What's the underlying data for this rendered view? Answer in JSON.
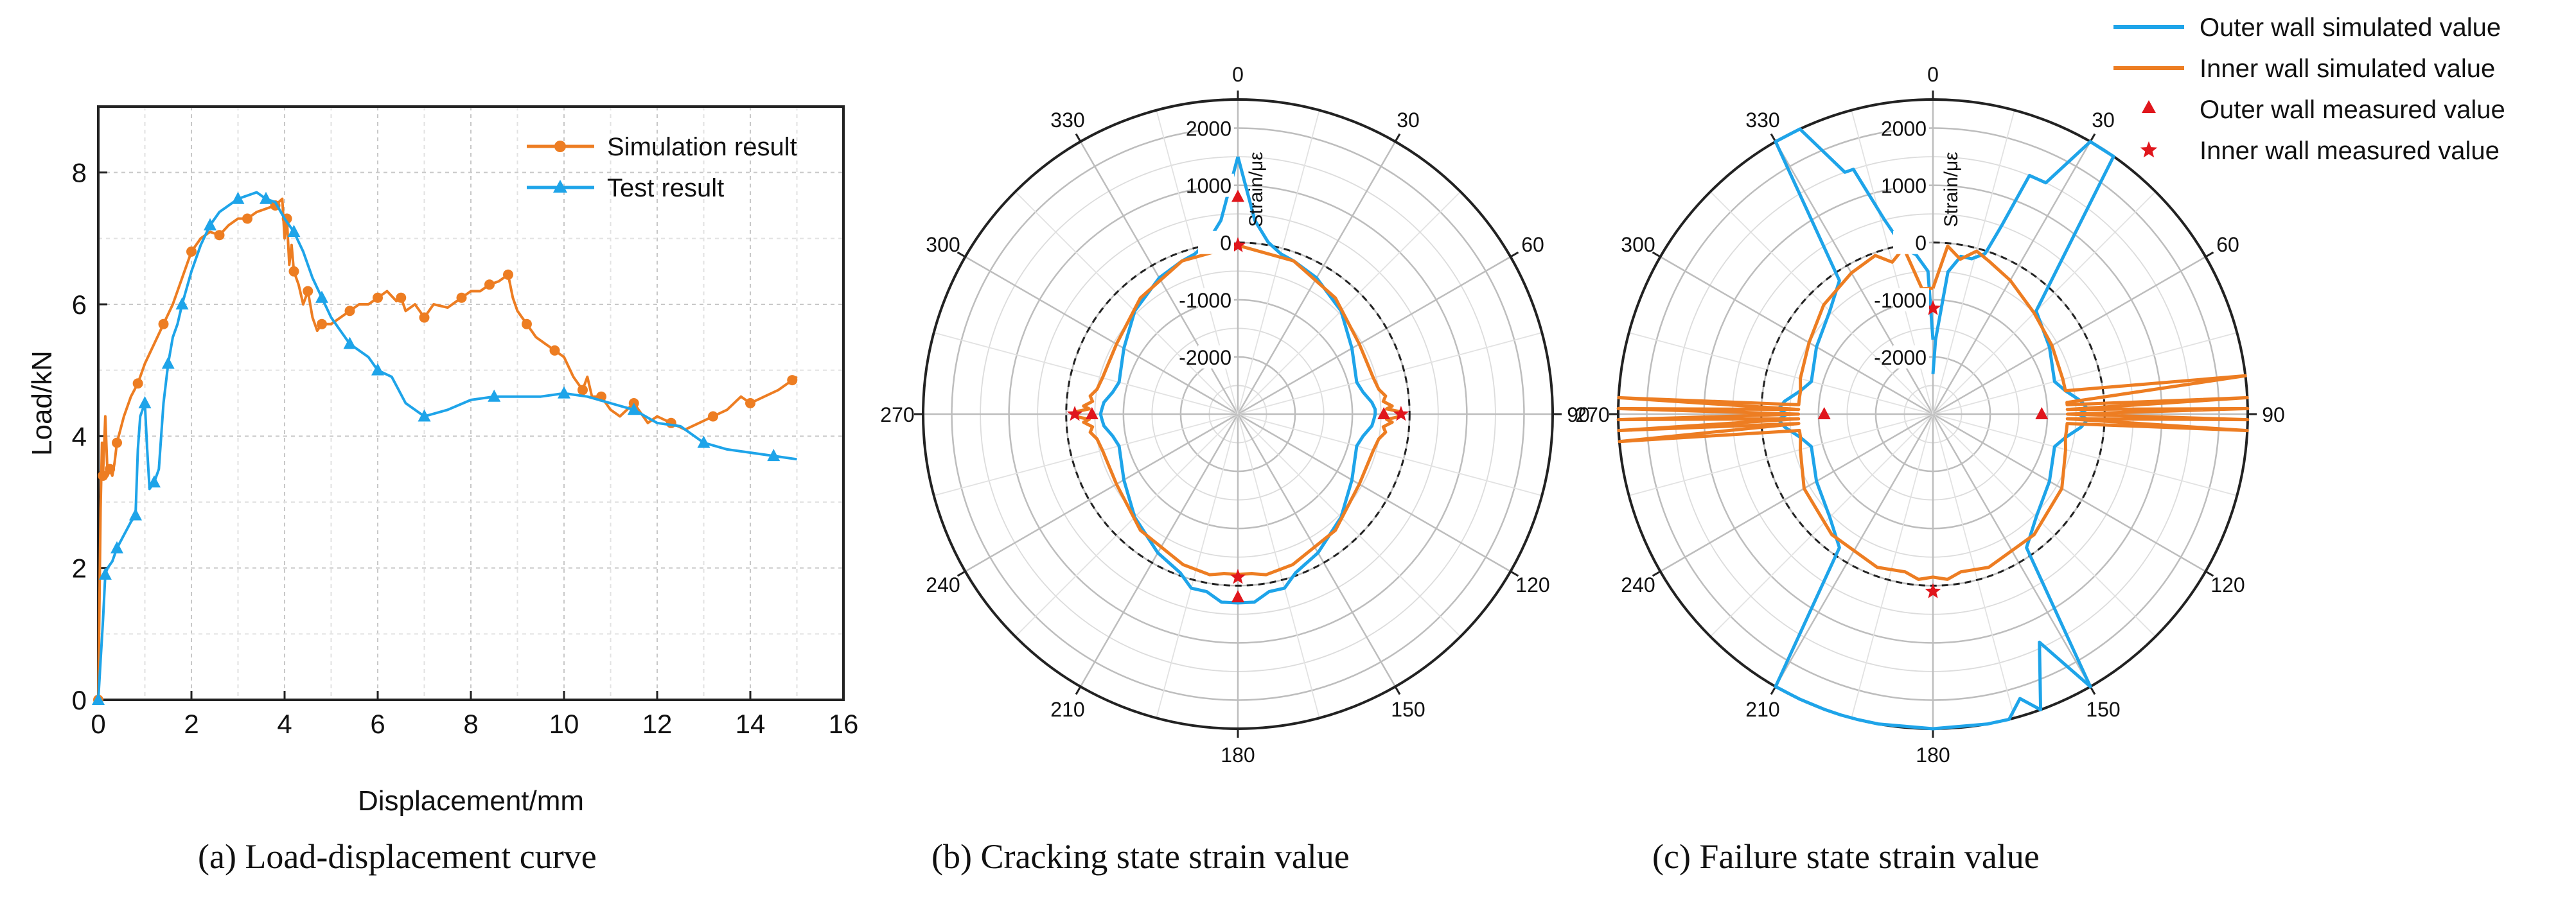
{
  "colors": {
    "outer": "#1EA4E9",
    "inner": "#ED7D22",
    "marker": "#E0161C",
    "grid": "#BDBDBD",
    "axis": "#222222"
  },
  "chart_data": [
    {
      "type": "line",
      "caption": "(a)  Load-displacement curve",
      "xlabel": "Displacement/mm",
      "ylabel": "Load/kN",
      "xlim": [
        0,
        16
      ],
      "ylim": [
        0,
        9
      ],
      "xticks": [
        0,
        2,
        4,
        6,
        8,
        10,
        12,
        14,
        16
      ],
      "yticks": [
        0,
        2,
        4,
        6,
        8
      ],
      "grid": true,
      "legend_position": "top-right",
      "series": [
        {
          "name": "Simulation result",
          "marker": "circle",
          "color": "#ED7D22",
          "x": [
            0,
            0.05,
            0.08,
            0.1,
            0.15,
            0.2,
            0.25,
            0.3,
            0.35,
            0.4,
            0.55,
            0.7,
            0.85,
            1.0,
            1.2,
            1.4,
            1.6,
            1.8,
            2.0,
            2.2,
            2.4,
            2.6,
            2.8,
            3.0,
            3.2,
            3.4,
            3.6,
            3.8,
            3.95,
            4.0,
            4.05,
            4.1,
            4.15,
            4.2,
            4.3,
            4.4,
            4.5,
            4.6,
            4.7,
            4.8,
            5.0,
            5.2,
            5.4,
            5.6,
            5.8,
            6.0,
            6.2,
            6.4,
            6.5,
            6.6,
            6.8,
            7.0,
            7.2,
            7.5,
            7.8,
            8.0,
            8.2,
            8.4,
            8.6,
            8.7,
            8.8,
            8.9,
            9.0,
            9.2,
            9.4,
            9.6,
            9.8,
            10.0,
            10.2,
            10.4,
            10.5,
            10.6,
            10.8,
            11.0,
            11.2,
            11.5,
            11.8,
            12.0,
            12.3,
            12.6,
            12.9,
            13.2,
            13.5,
            13.8,
            14.0,
            14.3,
            14.6,
            14.9,
            15.0
          ],
          "y": [
            0,
            2.9,
            3.9,
            3.4,
            4.3,
            3.4,
            3.5,
            3.4,
            3.6,
            3.9,
            4.3,
            4.6,
            4.8,
            5.1,
            5.4,
            5.7,
            6.0,
            6.4,
            6.8,
            7.0,
            7.1,
            7.05,
            7.2,
            7.3,
            7.3,
            7.4,
            7.45,
            7.5,
            7.6,
            7.0,
            7.3,
            6.6,
            6.9,
            6.5,
            6.3,
            6.0,
            6.2,
            5.8,
            5.6,
            5.7,
            5.7,
            5.8,
            5.9,
            6.0,
            6.0,
            6.1,
            6.2,
            6.05,
            6.1,
            5.9,
            6.0,
            5.8,
            6.0,
            5.95,
            6.1,
            6.2,
            6.2,
            6.3,
            6.35,
            6.4,
            6.45,
            6.1,
            5.9,
            5.7,
            5.5,
            5.4,
            5.3,
            5.2,
            4.9,
            4.7,
            4.9,
            4.6,
            4.6,
            4.4,
            4.3,
            4.5,
            4.2,
            4.3,
            4.2,
            4.1,
            4.2,
            4.3,
            4.4,
            4.6,
            4.5,
            4.6,
            4.7,
            4.85,
            4.9
          ]
        },
        {
          "name": "Test result",
          "marker": "triangle",
          "color": "#1EA4E9",
          "x": [
            0,
            0.05,
            0.1,
            0.15,
            0.2,
            0.3,
            0.4,
            0.55,
            0.7,
            0.8,
            0.85,
            0.9,
            1.0,
            1.05,
            1.1,
            1.2,
            1.3,
            1.4,
            1.5,
            1.6,
            1.7,
            1.8,
            2.0,
            2.2,
            2.4,
            2.6,
            2.8,
            3.0,
            3.2,
            3.4,
            3.6,
            3.8,
            4.0,
            4.2,
            4.4,
            4.6,
            4.8,
            5.0,
            5.2,
            5.4,
            5.6,
            5.8,
            6.0,
            6.3,
            6.6,
            7.0,
            7.5,
            8.0,
            8.5,
            9.0,
            9.5,
            10.0,
            10.5,
            11.0,
            11.5,
            12.0,
            12.5,
            13.0,
            13.5,
            14.0,
            14.5,
            15.0
          ],
          "y": [
            0,
            0.6,
            1.2,
            1.9,
            2.0,
            2.1,
            2.3,
            2.5,
            2.7,
            2.8,
            3.8,
            4.3,
            4.5,
            3.8,
            3.2,
            3.3,
            3.5,
            4.5,
            5.1,
            5.5,
            5.7,
            6.0,
            6.5,
            6.9,
            7.2,
            7.4,
            7.5,
            7.6,
            7.65,
            7.7,
            7.6,
            7.55,
            7.3,
            7.1,
            6.8,
            6.4,
            6.1,
            5.8,
            5.6,
            5.4,
            5.3,
            5.2,
            5.0,
            4.9,
            4.5,
            4.3,
            4.4,
            4.55,
            4.6,
            4.6,
            4.6,
            4.65,
            4.6,
            4.5,
            4.4,
            4.2,
            4.15,
            3.9,
            3.8,
            3.75,
            3.7,
            3.65
          ]
        }
      ]
    },
    {
      "type": "polar",
      "caption": "(b)   Cracking state strain value",
      "radial_label": "Strain/με",
      "rlim": [
        -3000,
        2500
      ],
      "angle_ticks": [
        "0",
        "30",
        "60",
        "90",
        "120",
        "150",
        "180",
        "210",
        "240",
        "270",
        "300",
        "330"
      ],
      "radial_ticks": [
        "2000",
        "1000",
        "0",
        "-1000",
        "-2000"
      ],
      "reference_circle": 0,
      "series": [
        {
          "name": "Outer wall simulated value",
          "color": "#1EA4E9",
          "angles": [
            0,
            5,
            10,
            15,
            20,
            30,
            45,
            60,
            75,
            80,
            85,
            88,
            90,
            92,
            95,
            100,
            105,
            120,
            135,
            150,
            160,
            165,
            170,
            175,
            180,
            185,
            190,
            195,
            200,
            210,
            225,
            240,
            255,
            260,
            265,
            268,
            270,
            272,
            275,
            280,
            285,
            300,
            315,
            330,
            340,
            345,
            350,
            355,
            360
          ],
          "values": [
            1500,
            400,
            50,
            -100,
            -150,
            -250,
            -450,
            -700,
            -850,
            -780,
            -650,
            -600,
            -600,
            -620,
            -650,
            -780,
            -850,
            -700,
            -450,
            -200,
            -50,
            150,
            150,
            300,
            300,
            300,
            150,
            150,
            -50,
            -200,
            -450,
            -700,
            -850,
            -780,
            -650,
            -620,
            -600,
            -620,
            -650,
            -780,
            -850,
            -700,
            -450,
            -250,
            -150,
            -100,
            50,
            400,
            1500
          ]
        },
        {
          "name": "Inner wall simulated value",
          "color": "#ED7D22",
          "angles": [
            0,
            20,
            40,
            60,
            75,
            80,
            83,
            85,
            87,
            88,
            89,
            90,
            91,
            92,
            93,
            95,
            97,
            100,
            105,
            120,
            140,
            160,
            170,
            175,
            180,
            185,
            190,
            200,
            220,
            240,
            255,
            260,
            263,
            265,
            267,
            268,
            269,
            270,
            271,
            272,
            273,
            275,
            277,
            280,
            285,
            300,
            320,
            340,
            360
          ],
          "values": [
            -50,
            -150,
            -350,
            -550,
            -550,
            -500,
            -400,
            -450,
            -300,
            -400,
            -200,
            -200,
            -200,
            -400,
            -300,
            -450,
            -400,
            -500,
            -550,
            -550,
            -350,
            -200,
            -150,
            -200,
            -200,
            -200,
            -150,
            -200,
            -350,
            -550,
            -550,
            -500,
            -400,
            -450,
            -300,
            -400,
            -200,
            -200,
            -200,
            -400,
            -300,
            -450,
            -400,
            -500,
            -550,
            -550,
            -350,
            -150,
            -50
          ]
        }
      ],
      "measured": [
        {
          "name": "Outer wall measured value",
          "marker": "triangle",
          "angles": [
            0,
            90,
            180,
            270
          ],
          "values": [
            800,
            -450,
            200,
            -450
          ]
        },
        {
          "name": "Inner wall measured value",
          "marker": "star",
          "angles": [
            0,
            90,
            180,
            270
          ],
          "values": [
            -50,
            -150,
            -150,
            -150
          ]
        }
      ]
    },
    {
      "type": "polar",
      "caption": "(c)   Failure state strain value",
      "radial_label": "Strain/με",
      "rlim": [
        -3000,
        2500
      ],
      "angle_ticks": [
        "0",
        "30",
        "60",
        "90",
        "120",
        "150",
        "180",
        "210",
        "240",
        "270",
        "300",
        "330"
      ],
      "radial_ticks": [
        "2000",
        "1000",
        "0",
        "-1000",
        "-2000"
      ],
      "reference_circle": 0,
      "series": [
        {
          "name": "Outer wall simulated value",
          "color": "#1EA4E9",
          "angles": [
            0,
            2,
            6,
            10,
            14,
            18,
            20,
            22,
            26,
            30,
            35,
            45,
            60,
            75,
            80,
            85,
            88,
            90,
            92,
            95,
            100,
            105,
            120,
            135,
            145,
            150,
            155,
            160,
            163,
            166,
            170,
            180,
            190,
            194,
            197,
            200,
            205,
            210,
            215,
            225,
            240,
            255,
            260,
            265,
            268,
            270,
            272,
            275,
            280,
            285,
            300,
            315,
            325,
            330,
            335,
            340,
            342,
            346,
            350,
            354,
            358,
            360
          ],
          "values": [
            -2300,
            -1700,
            -500,
            -200,
            -200,
            -50,
            500,
            1500,
            1500,
            2600,
            2600,
            -450,
            -650,
            -800,
            -650,
            -400,
            -300,
            -450,
            -300,
            -400,
            -650,
            -800,
            -650,
            -450,
            -150,
            2600,
            1400,
            2600,
            2200,
            2600,
            2600,
            2600,
            2600,
            2600,
            2600,
            2600,
            2600,
            2600,
            -150,
            -450,
            -650,
            -800,
            -650,
            -400,
            -300,
            -450,
            -300,
            -400,
            -650,
            -800,
            -650,
            -450,
            -150,
            2600,
            2600,
            1500,
            1500,
            500,
            -50,
            -200,
            -500,
            -1700
          ]
        },
        {
          "name": "Inner wall simulated value",
          "color": "#ED7D22",
          "angles": [
            0,
            5,
            10,
            15,
            20,
            30,
            45,
            60,
            75,
            80,
            83,
            85,
            86,
            87,
            88,
            89,
            90,
            91,
            92,
            93,
            94,
            95,
            97,
            100,
            105,
            120,
            140,
            160,
            170,
            175,
            180,
            185,
            190,
            200,
            220,
            240,
            255,
            260,
            263,
            265,
            266,
            267,
            268,
            269,
            270,
            271,
            272,
            273,
            274,
            275,
            277,
            280,
            285,
            300,
            315,
            330,
            340,
            345,
            350,
            355,
            360
          ],
          "values": [
            -800,
            -50,
            -250,
            -50,
            -150,
            -300,
            -500,
            -600,
            -650,
            -650,
            2600,
            -650,
            -650,
            2600,
            -650,
            2600,
            -650,
            2600,
            -650,
            2600,
            -650,
            -650,
            -650,
            -650,
            -600,
            -400,
            -250,
            -150,
            -200,
            -100,
            -150,
            -100,
            -200,
            -150,
            -250,
            -400,
            -600,
            -650,
            -650,
            2600,
            -650,
            2600,
            -650,
            2600,
            -650,
            2600,
            -650,
            2600,
            -650,
            -650,
            -650,
            -650,
            -600,
            -500,
            -300,
            -150,
            -50,
            -250,
            -50,
            -800,
            -800
          ]
        }
      ],
      "measured": [
        {
          "name": "Outer wall measured value",
          "marker": "triangle",
          "angles": [
            90,
            270
          ],
          "values": [
            -1100,
            -1100
          ]
        },
        {
          "name": "Inner wall measured value",
          "marker": "star",
          "angles": [
            0,
            180
          ],
          "values": [
            -1150,
            100
          ]
        }
      ]
    }
  ],
  "legend": [
    {
      "label": "Outer wall simulated value",
      "kind": "line",
      "color": "#1EA4E9"
    },
    {
      "label": "Inner wall simulated value",
      "kind": "line",
      "color": "#ED7D22"
    },
    {
      "label": "Outer wall measured value",
      "kind": "triangle",
      "color": "#E0161C"
    },
    {
      "label": "Inner wall measured value",
      "kind": "star",
      "color": "#E0161C"
    }
  ]
}
